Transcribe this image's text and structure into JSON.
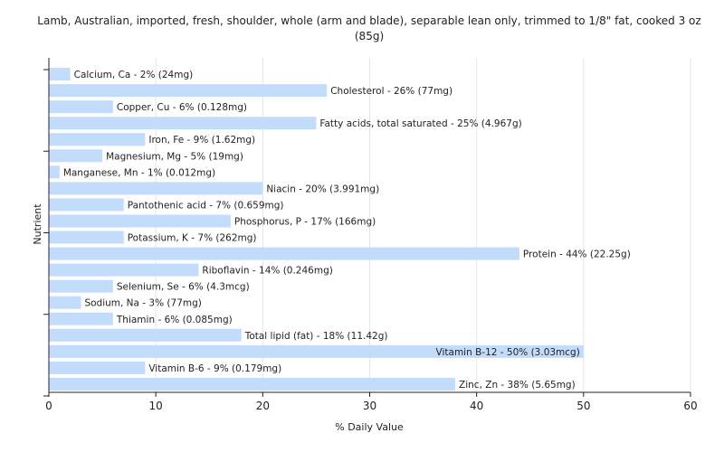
{
  "chart_data": {
    "type": "bar",
    "orientation": "horizontal",
    "title": "Lamb, Australian, imported, fresh, shoulder, whole (arm and blade), separable lean only, trimmed to 1/8\" fat, cooked 3 oz (85g)",
    "xlabel": "% Daily Value",
    "ylabel": "Nutrient",
    "xlim": [
      0,
      60
    ],
    "xticks": [
      0,
      10,
      20,
      30,
      40,
      50,
      60
    ],
    "grid": true,
    "bar_color": "#c4dcfb",
    "categories": [
      "Calcium, Ca",
      "Cholesterol",
      "Copper, Cu",
      "Fatty acids, total saturated",
      "Iron, Fe",
      "Magnesium, Mg",
      "Manganese, Mn",
      "Niacin",
      "Pantothenic acid",
      "Phosphorus, P",
      "Potassium, K",
      "Protein",
      "Riboflavin",
      "Selenium, Se",
      "Sodium, Na",
      "Thiamin",
      "Total lipid (fat)",
      "Vitamin B-12",
      "Vitamin B-6",
      "Zinc, Zn"
    ],
    "values": [
      2,
      26,
      6,
      25,
      9,
      5,
      1,
      20,
      7,
      17,
      7,
      44,
      14,
      6,
      3,
      6,
      18,
      50,
      9,
      38
    ],
    "labels": [
      "Calcium, Ca - 2% (24mg)",
      "Cholesterol - 26% (77mg)",
      "Copper, Cu - 6% (0.128mg)",
      "Fatty acids, total saturated - 25% (4.967g)",
      "Iron, Fe - 9% (1.62mg)",
      "Magnesium, Mg - 5% (19mg)",
      "Manganese, Mn - 1% (0.012mg)",
      "Niacin - 20% (3.991mg)",
      "Pantothenic acid - 7% (0.659mg)",
      "Phosphorus, P - 17% (166mg)",
      "Potassium, K - 7% (262mg)",
      "Protein - 44% (22.25g)",
      "Riboflavin - 14% (0.246mg)",
      "Selenium, Se - 6% (4.3mcg)",
      "Sodium, Na - 3% (77mg)",
      "Thiamin - 6% (0.085mg)",
      "Total lipid (fat) - 18% (11.42g)",
      "Vitamin B-12 - 50% (3.03mcg)",
      "Vitamin B-6 - 9% (0.179mg)",
      "Zinc, Zn - 38% (5.65mg)"
    ]
  }
}
